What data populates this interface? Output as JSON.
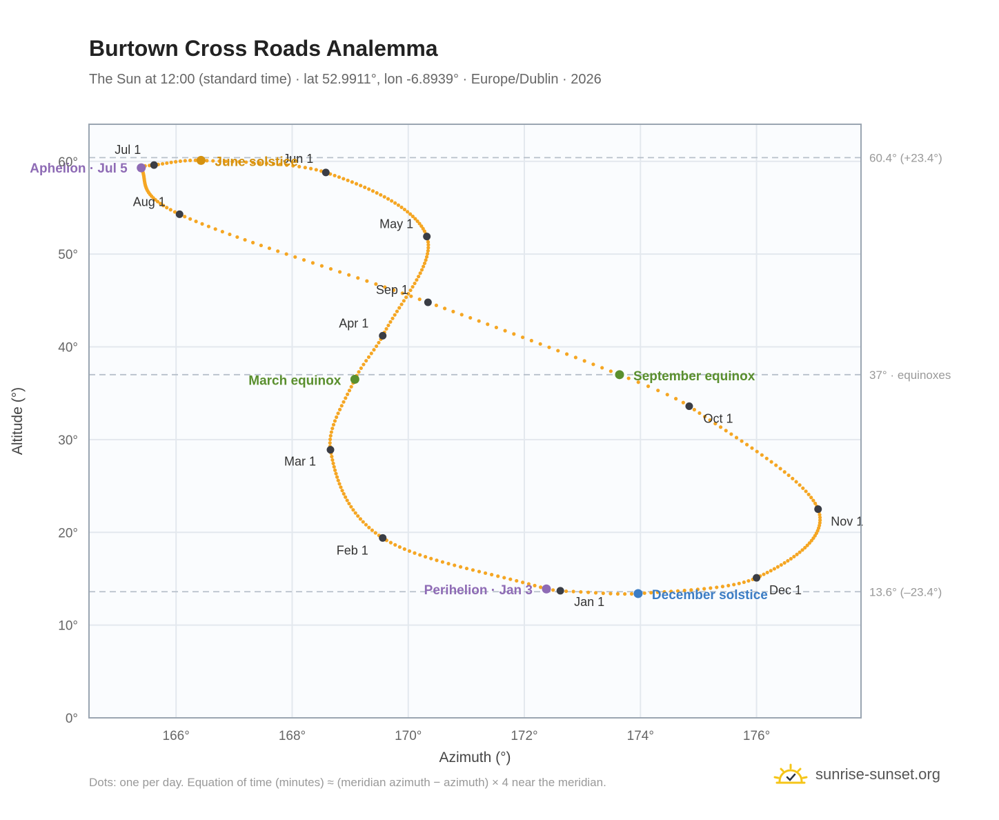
{
  "title": "Burtown Cross Roads Analemma",
  "subtitle": "The Sun at 12:00 (standard time) · lat 52.9911°, lon -6.8939° · Europe/Dublin · 2026",
  "footer_note": "Dots: one per day. Equation of time (minutes) ≈ (meridian azimuth − azimuth) × 4 near the meridian.",
  "brand": {
    "name": "sunrise-sunset.org",
    "icon": "sun-logo-icon"
  },
  "colors": {
    "curve": "#F5A623",
    "month_marker": "#3A3D45",
    "aphelion": "#8E6BB5",
    "perihelion": "#8E6BB5",
    "june_solstice": "#D4910F",
    "december_solstice": "#3B7CC4",
    "equinox": "#5A8F2E",
    "grid": "#E3E8EE",
    "frame": "#9AA5B1",
    "plot_bg": "#FAFCFE"
  },
  "chart_data": {
    "type": "scatter",
    "xlabel": "Azimuth (°)",
    "ylabel": "Altitude (°)",
    "xlim": [
      164.5,
      177.8
    ],
    "ylim": [
      0,
      64
    ],
    "x_ticks": [
      166,
      168,
      170,
      172,
      174,
      176
    ],
    "x_tick_labels": [
      "166°",
      "168°",
      "170°",
      "172°",
      "174°",
      "176°"
    ],
    "y_ticks": [
      0,
      10,
      20,
      30,
      40,
      50,
      60
    ],
    "y_tick_labels": [
      "0°",
      "10°",
      "20°",
      "30°",
      "40°",
      "50°",
      "60°"
    ],
    "grid": true,
    "legend": "none",
    "reference_lines": [
      {
        "y": 60.4,
        "label": "60.4° (+23.4°)"
      },
      {
        "y": 37.0,
        "label": "37° · equinoxes"
      },
      {
        "y": 13.6,
        "label": "13.6° (–23.4°)"
      }
    ],
    "path_anchors": [
      {
        "date": "2026-01-01",
        "az": 172.62,
        "alt": 13.7
      },
      {
        "date": "2026-01-03",
        "az": 172.38,
        "alt": 13.9
      },
      {
        "date": "2026-02-01",
        "az": 169.56,
        "alt": 19.4
      },
      {
        "date": "2026-03-01",
        "az": 168.66,
        "alt": 28.9
      },
      {
        "date": "2026-03-20",
        "az": 169.08,
        "alt": 36.5
      },
      {
        "date": "2026-04-01",
        "az": 169.56,
        "alt": 41.2
      },
      {
        "date": "2026-05-01",
        "az": 170.32,
        "alt": 51.9
      },
      {
        "date": "2026-06-01",
        "az": 168.58,
        "alt": 58.8
      },
      {
        "date": "2026-06-21",
        "az": 166.43,
        "alt": 60.1
      },
      {
        "date": "2026-07-01",
        "az": 165.62,
        "alt": 59.6
      },
      {
        "date": "2026-07-05",
        "az": 165.4,
        "alt": 59.3
      },
      {
        "date": "2026-08-01",
        "az": 166.06,
        "alt": 54.3
      },
      {
        "date": "2026-09-01",
        "az": 170.34,
        "alt": 44.8
      },
      {
        "date": "2026-09-23",
        "az": 173.64,
        "alt": 37.0
      },
      {
        "date": "2026-10-01",
        "az": 174.84,
        "alt": 33.6
      },
      {
        "date": "2026-11-01",
        "az": 177.06,
        "alt": 22.5
      },
      {
        "date": "2026-12-01",
        "az": 176.0,
        "alt": 15.1
      },
      {
        "date": "2026-12-21",
        "az": 173.96,
        "alt": 13.4
      },
      {
        "date": "2026-12-31",
        "az": 172.72,
        "alt": 13.65
      }
    ],
    "month_markers": [
      {
        "label": "Jan 1",
        "az": 172.62,
        "alt": 13.7
      },
      {
        "label": "Feb 1",
        "az": 169.56,
        "alt": 19.4
      },
      {
        "label": "Mar 1",
        "az": 168.66,
        "alt": 28.9
      },
      {
        "label": "Apr 1",
        "az": 169.56,
        "alt": 41.2
      },
      {
        "label": "May 1",
        "az": 170.32,
        "alt": 51.9
      },
      {
        "label": "Jun 1",
        "az": 168.58,
        "alt": 58.8
      },
      {
        "label": "Jul 1",
        "az": 165.62,
        "alt": 59.6
      },
      {
        "label": "Aug 1",
        "az": 166.06,
        "alt": 54.3
      },
      {
        "label": "Sep 1",
        "az": 170.34,
        "alt": 44.8
      },
      {
        "label": "Oct 1",
        "az": 174.84,
        "alt": 33.6
      },
      {
        "label": "Nov 1",
        "az": 177.06,
        "alt": 22.5
      },
      {
        "label": "Dec 1",
        "az": 176.0,
        "alt": 15.1
      }
    ],
    "events": [
      {
        "label": "Aphelion · Jul 5",
        "az": 165.4,
        "alt": 59.3,
        "color_key": "aphelion"
      },
      {
        "label": "June solstice",
        "az": 166.43,
        "alt": 60.1,
        "color_key": "june_solstice"
      },
      {
        "label": "March equinox",
        "az": 169.08,
        "alt": 36.5,
        "color_key": "equinox"
      },
      {
        "label": "September equinox",
        "az": 173.64,
        "alt": 37.0,
        "color_key": "equinox"
      },
      {
        "label": "Perihelion · Jan 3",
        "az": 172.38,
        "alt": 13.9,
        "color_key": "perihelion"
      },
      {
        "label": "December solstice",
        "az": 173.96,
        "alt": 13.4,
        "color_key": "december_solstice"
      }
    ]
  }
}
